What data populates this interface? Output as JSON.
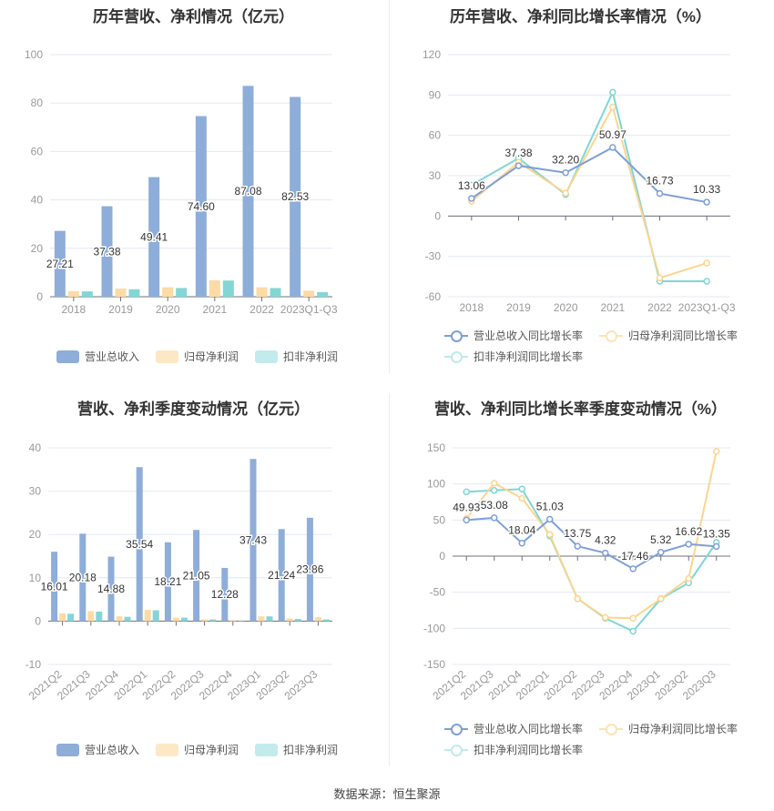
{
  "colors": {
    "revenue": "#8eadd9",
    "net_profit": "#fddba5",
    "deducted": "#84d6d6",
    "revenue_line": "#7e9fd8",
    "net_line": "#fcd58f",
    "ded_line": "#7ed6d4"
  },
  "source": "数据来源：恒生聚源",
  "chart_data": [
    {
      "type": "bar",
      "title": "历年营收、净利情况（亿元）",
      "ylim": [
        0,
        100
      ],
      "yticks": [
        0,
        20,
        40,
        60,
        80,
        100
      ],
      "categories": [
        "2018",
        "2019",
        "2020",
        "2021",
        "2022",
        "2023Q1-Q3"
      ],
      "series": [
        {
          "name": "营业总收入",
          "values": [
            27.21,
            37.38,
            49.41,
            74.6,
            87.08,
            82.53
          ],
          "labels": [
            "27.21",
            "37.38",
            "49.41",
            "74.60",
            "87.08",
            "82.53"
          ]
        },
        {
          "name": "归母净利润",
          "values": [
            2.3,
            3.4,
            3.9,
            6.8,
            3.9,
            2.5
          ]
        },
        {
          "name": "扣非净利润",
          "values": [
            2.2,
            3.1,
            3.6,
            6.7,
            3.6,
            1.9
          ]
        }
      ],
      "legend": "bottom"
    },
    {
      "type": "line",
      "title": "历年营收、净利同比增长率情况（%）",
      "ylim": [
        -60,
        120
      ],
      "yticks": [
        -60,
        -30,
        0,
        30,
        60,
        90,
        120
      ],
      "categories": [
        "2018",
        "2019",
        "2020",
        "2021",
        "2022",
        "2023Q1-Q3"
      ],
      "series": [
        {
          "name": "营业总收入同比增长率",
          "values": [
            13.06,
            37.38,
            32.2,
            50.97,
            16.73,
            10.33
          ],
          "labels": [
            "13.06",
            "37.38",
            "32.20",
            "50.97",
            "16.73",
            "10.33"
          ]
        },
        {
          "name": "归母净利润同比增长率",
          "values": [
            11,
            40,
            17,
            81,
            -46,
            -35
          ]
        },
        {
          "name": "扣非净利润同比增长率",
          "values": [
            23,
            43,
            16,
            92,
            -48.5,
            -48.5
          ]
        }
      ],
      "legend": "bottom"
    },
    {
      "type": "bar",
      "title": "营收、净利季度变动情况（亿元）",
      "ylim": [
        -10,
        40
      ],
      "yticks": [
        -10,
        0,
        10,
        20,
        30,
        40
      ],
      "categories": [
        "2021Q2",
        "2021Q3",
        "2021Q4",
        "2022Q1",
        "2022Q2",
        "2022Q3",
        "2022Q4",
        "2023Q1",
        "2023Q2",
        "2023Q3"
      ],
      "series": [
        {
          "name": "营业总收入",
          "values": [
            16.01,
            20.18,
            14.88,
            35.54,
            18.21,
            21.05,
            12.28,
            37.43,
            21.24,
            23.86
          ],
          "labels": [
            "16.01",
            "20.18",
            "14.88",
            "35.54",
            "18.21",
            "21.05",
            "12.28",
            "37.43",
            "21.24",
            "23.86"
          ]
        },
        {
          "name": "归母净利润",
          "values": [
            1.8,
            2.3,
            1.1,
            2.6,
            0.8,
            0.4,
            0.2,
            1.1,
            0.6,
            0.9
          ]
        },
        {
          "name": "扣非净利润",
          "values": [
            1.7,
            2.2,
            1.0,
            2.5,
            0.8,
            0.4,
            0.1,
            1.1,
            0.5,
            0.4
          ]
        }
      ],
      "legend": "bottom"
    },
    {
      "type": "line",
      "title": "营收、净利同比增长率季度变动情况（%）",
      "ylim": [
        -150,
        150
      ],
      "yticks": [
        -150,
        -100,
        -50,
        0,
        50,
        100,
        150
      ],
      "categories": [
        "2021Q2",
        "2021Q3",
        "2021Q4",
        "2022Q1",
        "2022Q2",
        "2022Q3",
        "2022Q4",
        "2023Q1",
        "2023Q2",
        "2023Q3"
      ],
      "series": [
        {
          "name": "营业总收入同比增长率",
          "values": [
            49.93,
            53.08,
            18.04,
            51.03,
            13.75,
            4.32,
            -17.46,
            5.32,
            16.62,
            13.35
          ],
          "labels": [
            "49.93",
            "53.08",
            "18.04",
            "51.03",
            "13.75",
            "4.32",
            "-17.46",
            "5.32",
            "16.62",
            "13.35"
          ]
        },
        {
          "name": "归母净利润同比增长率",
          "values": [
            52,
            101,
            80,
            30,
            -59,
            -85,
            -86,
            -59,
            -31,
            145
          ]
        },
        {
          "name": "扣非净利润同比增长率",
          "values": [
            89,
            91,
            93,
            28,
            -59,
            -86,
            -104,
            -59,
            -37,
            19
          ]
        }
      ],
      "legend": "bottom"
    }
  ]
}
